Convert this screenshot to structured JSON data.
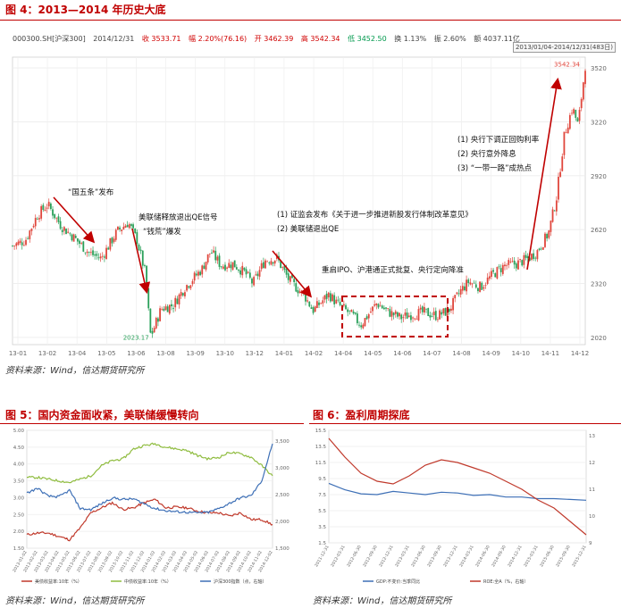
{
  "fig4": {
    "title": "图 4：2013—2014 年历史大底",
    "info": {
      "code": "000300.SH[沪深300]",
      "date": "2014/12/31",
      "close": "收 3533.71",
      "change": "幅 2.20%(76.16)",
      "open": "开 3462.39",
      "high": "高 3542.34",
      "low": "低 3452.50",
      "turnover": "换 1.13%",
      "amplitude": "振 2.60%",
      "amount": "额 4037.11亿"
    },
    "range_label": "2013/01/04-2014/12/31(483日)",
    "source": "资料来源：Wind，信达期货研究所",
    "annotations": {
      "a1": "“国五条”发布",
      "a2_line1": "美联储释放退出QE信号",
      "a2_line2": "“钱荒”爆发",
      "a3_line1": "(1)  证监会发布《关于进一步推进新股发行体制改革意见》",
      "a3_line2": "(2)  美联储退出QE",
      "a4": "重启IPO、沪港通正式批复、央行定向降准",
      "a5_line1": "(1)  央行下调正回购利率",
      "a5_line2": "(2)  央行意外降息",
      "a5_line3": "(3)  “一带一路”成热点",
      "low_label": "2023.17",
      "high_label": "3542.34"
    },
    "colors": {
      "up": "#e0463c",
      "down": "#2aa05a",
      "arrow": "#c00000",
      "box": "#c00000"
    }
  },
  "fig5": {
    "title": "图 5：国内资金面收紧，美联储缓慢转向",
    "source": "资料来源：Wind，信达期货研究所"
  },
  "fig6": {
    "title": "图 6：盈利周期探底",
    "source": "资料来源：Wind，信达期货研究所"
  },
  "chart_data": [
    {
      "type": "candlestick",
      "name_ref": "fig4",
      "x_tick_labels": [
        "13-01",
        "13-02",
        "13-04",
        "13-05",
        "13-06",
        "13-08",
        "13-09",
        "13-10",
        "13-12",
        "14-01",
        "14-02",
        "14-04",
        "14-05",
        "14-06",
        "14-07",
        "14-08",
        "14-09",
        "14-10",
        "14-11",
        "14-12"
      ],
      "y_ticks": [
        2020,
        2320,
        2620,
        2920,
        3220,
        3520
      ],
      "ylim": [
        1980,
        3580
      ],
      "grid": true,
      "path_points": [
        [
          "13-01-04",
          2530
        ],
        [
          "13-01-20",
          2560
        ],
        [
          "13-02-05",
          2700
        ],
        [
          "13-02-18",
          2760
        ],
        [
          "13-03-05",
          2640
        ],
        [
          "13-03-20",
          2580
        ],
        [
          "13-04-10",
          2490
        ],
        [
          "13-04-25",
          2460
        ],
        [
          "13-05-15",
          2610
        ],
        [
          "13-05-29",
          2660
        ],
        [
          "13-06-10",
          2560
        ],
        [
          "13-06-20",
          2380
        ],
        [
          "13-06-27",
          2023
        ],
        [
          "13-07-10",
          2180
        ],
        [
          "13-07-25",
          2200
        ],
        [
          "13-08-10",
          2300
        ],
        [
          "13-09-01",
          2400
        ],
        [
          "13-09-12",
          2500
        ],
        [
          "13-09-25",
          2420
        ],
        [
          "13-10-10",
          2430
        ],
        [
          "13-10-25",
          2380
        ],
        [
          "13-11-05",
          2320
        ],
        [
          "13-11-20",
          2450
        ],
        [
          "13-12-05",
          2460
        ],
        [
          "13-12-20",
          2340
        ],
        [
          "14-01-10",
          2250
        ],
        [
          "14-01-20",
          2170
        ],
        [
          "14-02-10",
          2260
        ],
        [
          "14-02-20",
          2210
        ],
        [
          "14-03-10",
          2140
        ],
        [
          "14-03-20",
          2090
        ],
        [
          "14-04-10",
          2210
        ],
        [
          "14-04-25",
          2160
        ],
        [
          "14-05-10",
          2130
        ],
        [
          "14-05-25",
          2150
        ],
        [
          "14-06-10",
          2160
        ],
        [
          "14-06-25",
          2140
        ],
        [
          "14-07-10",
          2170
        ],
        [
          "14-07-25",
          2280
        ],
        [
          "14-08-05",
          2330
        ],
        [
          "14-08-20",
          2300
        ],
        [
          "14-09-05",
          2370
        ],
        [
          "14-09-20",
          2420
        ],
        [
          "14-10-05",
          2430
        ],
        [
          "14-10-20",
          2460
        ],
        [
          "14-11-01",
          2500
        ],
        [
          "14-11-15",
          2600
        ],
        [
          "14-11-25",
          2800
        ],
        [
          "14-12-05",
          3150
        ],
        [
          "14-12-15",
          3300
        ],
        [
          "14-12-22",
          3200
        ],
        [
          "14-12-31",
          3533
        ]
      ],
      "low_point": {
        "date": "13-06-27",
        "value": 2023.17
      },
      "high_point": {
        "date": "14-12-31",
        "value": 3542.34
      }
    },
    {
      "type": "line",
      "name_ref": "fig5",
      "y_left_ticks": [
        "1.50",
        "2.00",
        "2.50",
        "3.00",
        "3.50",
        "4.00",
        "4.50",
        "5.00"
      ],
      "y_left_lim": [
        1.5,
        5.0
      ],
      "y_right_ticks": [
        "1,500",
        "2,000",
        "2,500",
        "3,000",
        "3,500"
      ],
      "y_right_lim": [
        1500,
        3700
      ],
      "x_tick_labels": [
        "2013-01-02",
        "2013-02-02",
        "2013-03-02",
        "2013-04-02",
        "2013-05-02",
        "2013-06-02",
        "2013-07-02",
        "2013-08-02",
        "2013-09-02",
        "2013-10-02",
        "2013-11-02",
        "2013-12-02",
        "2014-01-02",
        "2014-02-02",
        "2014-03-02",
        "2014-04-02",
        "2014-05-02",
        "2014-06-02",
        "2014-07-02",
        "2014-08-02",
        "2014-09-02",
        "2014-10-02",
        "2014-11-02",
        "2014-12-02"
      ],
      "series": [
        {
          "name": "美债收益率:10年（%）",
          "color": "#c0392b",
          "axis": "left",
          "values": [
            1.9,
            1.95,
            1.95,
            1.85,
            1.75,
            2.1,
            2.55,
            2.7,
            2.85,
            2.65,
            2.7,
            2.85,
            2.95,
            2.7,
            2.72,
            2.7,
            2.6,
            2.55,
            2.55,
            2.45,
            2.55,
            2.35,
            2.35,
            2.2
          ]
        },
        {
          "name": "中债收益率:10年（%）",
          "color": "#8fbc3f",
          "axis": "left",
          "values": [
            3.6,
            3.6,
            3.55,
            3.5,
            3.45,
            3.55,
            3.65,
            3.95,
            4.1,
            4.15,
            4.45,
            4.55,
            4.6,
            4.5,
            4.45,
            4.4,
            4.25,
            4.15,
            4.2,
            4.35,
            4.3,
            4.2,
            3.95,
            3.65
          ]
        },
        {
          "name": "沪深300指数（点，右轴）",
          "color": "#3d6fb6",
          "axis": "right",
          "values": [
            2525,
            2620,
            2470,
            2460,
            2580,
            2240,
            2220,
            2330,
            2440,
            2410,
            2420,
            2330,
            2240,
            2200,
            2180,
            2170,
            2160,
            2170,
            2240,
            2340,
            2440,
            2480,
            2760,
            3450
          ]
        }
      ]
    },
    {
      "type": "line",
      "name_ref": "fig6",
      "y_left_ticks": [
        "1.5",
        "3.5",
        "5.5",
        "7.5",
        "9.5",
        "11.5",
        "13.5",
        "15.5"
      ],
      "y_left_lim": [
        1.5,
        15.5
      ],
      "y_right_ticks": [
        "9",
        "10",
        "11",
        "12",
        "13"
      ],
      "y_right_lim": [
        9,
        13.2
      ],
      "x_tick_labels": [
        "2011-12-31",
        "2012-03-31",
        "2012-06-30",
        "2012-09-30",
        "2012-12-31",
        "2013-03-31",
        "2013-06-30",
        "2013-09-30",
        "2013-12-31",
        "2014-03-31",
        "2014-06-30",
        "2014-09-30",
        "2014-12-31",
        "2015-03-31",
        "2015-06-30",
        "2015-09-30",
        "2015-12-31"
      ],
      "series": [
        {
          "name": "GDP:不变价:当季同比",
          "color": "#3d6fb6",
          "axis": "left",
          "values": [
            8.9,
            8.1,
            7.6,
            7.5,
            7.9,
            7.7,
            7.5,
            7.8,
            7.7,
            7.4,
            7.5,
            7.2,
            7.2,
            7.0,
            7.0,
            6.9,
            6.8
          ]
        },
        {
          "name": "ROE:全A（%，右轴）",
          "color": "#c0392b",
          "axis": "right",
          "values": [
            12.9,
            12.2,
            11.6,
            11.3,
            11.2,
            11.5,
            11.9,
            12.1,
            12.0,
            11.8,
            11.6,
            11.3,
            11.0,
            10.6,
            10.3,
            9.8,
            9.3
          ]
        }
      ]
    }
  ]
}
